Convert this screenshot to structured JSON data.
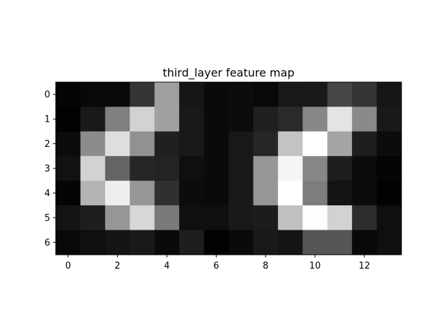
{
  "chart_data": {
    "type": "heatmap",
    "title": "third_layer feature map",
    "colormap": "gray",
    "value_range": [
      0,
      255
    ],
    "rows": 7,
    "cols": 14,
    "x_ticks": [
      0,
      2,
      4,
      6,
      8,
      10,
      12
    ],
    "y_ticks": [
      0,
      1,
      2,
      3,
      4,
      5,
      6
    ],
    "grid": false,
    "values": [
      [
        5,
        8,
        8,
        52,
        160,
        22,
        10,
        12,
        8,
        24,
        25,
        70,
        52,
        22
      ],
      [
        2,
        25,
        128,
        210,
        160,
        25,
        10,
        12,
        32,
        42,
        135,
        228,
        138,
        25
      ],
      [
        12,
        140,
        222,
        145,
        32,
        25,
        10,
        24,
        38,
        195,
        255,
        165,
        30,
        12
      ],
      [
        18,
        210,
        100,
        38,
        35,
        15,
        10,
        24,
        150,
        245,
        135,
        30,
        12,
        5
      ],
      [
        5,
        180,
        238,
        150,
        48,
        12,
        10,
        25,
        150,
        255,
        125,
        20,
        12,
        2
      ],
      [
        20,
        30,
        150,
        215,
        122,
        15,
        15,
        25,
        28,
        192,
        253,
        210,
        45,
        15
      ],
      [
        8,
        15,
        20,
        25,
        10,
        30,
        2,
        10,
        25,
        20,
        85,
        85,
        8,
        15
      ]
    ]
  }
}
